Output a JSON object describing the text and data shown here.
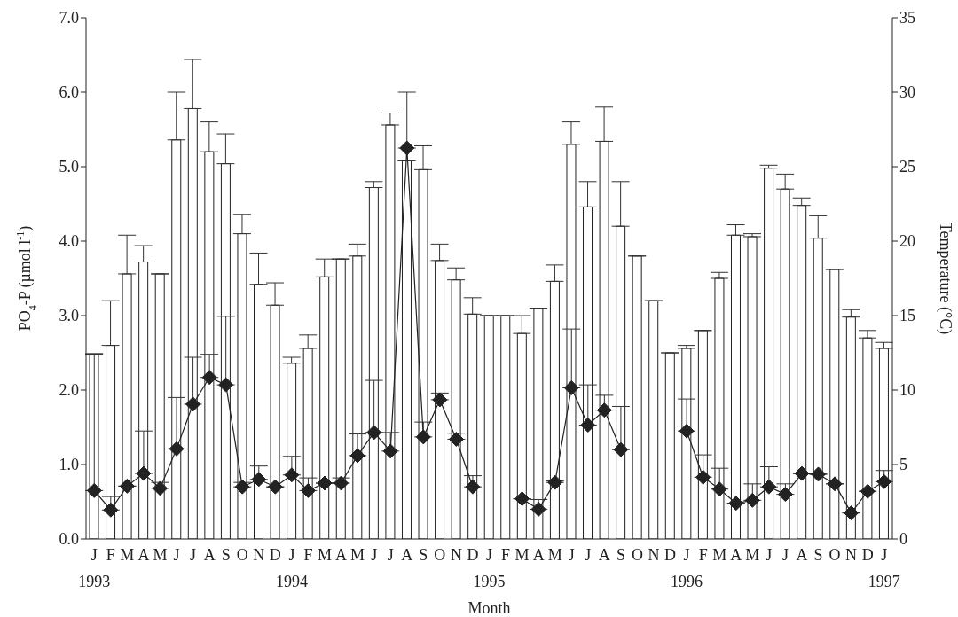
{
  "chart_data": {
    "type": "bar",
    "xlabel": "Month",
    "ylabel": "PO$_{4}$-P (µmol l$^{-1}$)",
    "y2label": "Temperature (°C)",
    "categories": [
      "J\n1993",
      "F",
      "M",
      "A",
      "M",
      "J",
      "J",
      "A",
      "S",
      "O",
      "N",
      "D",
      "J\n1994",
      "F",
      "M",
      "A",
      "M",
      "J",
      "J",
      "A",
      "S",
      "O",
      "N",
      "D",
      "J\n1995",
      "F",
      "M",
      "A",
      "M",
      "J",
      "J",
      "A",
      "S",
      "O",
      "N",
      "D",
      "J\n1996",
      "F",
      "M",
      "A",
      "M",
      "J",
      "J",
      "A",
      "S",
      "O",
      "N",
      "D",
      "J\n1997"
    ],
    "series": [
      {
        "axis": "y2",
        "color": "#ffffff",
        "values": [
          12.4,
          13.0,
          17.8,
          18.6,
          17.8,
          26.8,
          28.9,
          26.0,
          25.2,
          20.5,
          17.1,
          15.7,
          11.8,
          12.8,
          17.6,
          18.8,
          19.0,
          23.6,
          27.8,
          25.4,
          24.8,
          18.7,
          17.4,
          15.1,
          15.0,
          15.0,
          13.8,
          15.5,
          17.3,
          26.5,
          22.3,
          26.7,
          21.0,
          19.0,
          16.0,
          12.5,
          12.8,
          14.0,
          17.5,
          20.4,
          20.3,
          24.9,
          23.5,
          22.4,
          20.2,
          18.1,
          14.9,
          13.5,
          12.8
        ],
        "errors": [
          null,
          [
            13.0,
            16.0
          ],
          [
            17.8,
            20.4
          ],
          [
            18.6,
            19.7
          ],
          null,
          [
            26.8,
            30.0
          ],
          [
            28.9,
            32.2
          ],
          [
            26.0,
            28.0
          ],
          [
            25.2,
            27.2
          ],
          [
            20.5,
            21.8
          ],
          [
            17.1,
            19.2
          ],
          [
            15.7,
            17.2
          ],
          [
            11.8,
            12.2
          ],
          [
            12.8,
            13.7
          ],
          [
            17.6,
            18.8
          ],
          null,
          [
            19.0,
            19.8
          ],
          [
            23.6,
            24.0
          ],
          [
            27.8,
            28.6
          ],
          null,
          [
            24.8,
            26.4
          ],
          [
            18.7,
            19.8
          ],
          [
            17.4,
            18.2
          ],
          [
            15.1,
            16.2
          ],
          null,
          null,
          [
            13.8,
            15.0
          ],
          null,
          [
            17.3,
            18.4
          ],
          [
            26.5,
            28.0
          ],
          [
            22.3,
            24.0
          ],
          [
            26.7,
            29.0
          ],
          [
            21.0,
            24.0
          ],
          null,
          null,
          null,
          [
            12.8,
            13.0
          ],
          null,
          [
            17.5,
            17.9
          ],
          [
            20.4,
            21.1
          ],
          [
            20.3,
            20.5
          ],
          [
            24.9,
            25.1
          ],
          [
            23.5,
            24.5
          ],
          [
            22.4,
            22.9
          ],
          [
            20.2,
            21.7
          ],
          null,
          [
            14.9,
            15.4
          ],
          [
            13.5,
            14.0
          ],
          [
            12.8,
            13.2
          ]
        ]
      },
      {
        "type": "line",
        "axis": "y",
        "color": "#222222",
        "marker": "diamond",
        "line_style": "solid",
        "values": [
          0.65,
          0.39,
          0.71,
          0.88,
          0.68,
          1.21,
          1.81,
          2.17,
          2.07,
          0.7,
          0.8,
          0.7,
          0.86,
          0.65,
          0.75,
          0.75,
          1.12,
          1.43,
          1.18,
          5.25,
          1.37,
          1.87,
          1.34,
          0.7,
          null,
          null,
          0.54,
          0.4,
          0.76,
          2.03,
          1.53,
          1.73,
          1.2,
          null,
          null,
          null,
          1.45,
          0.83,
          0.67,
          0.48,
          0.52,
          0.7,
          0.6,
          0.88,
          0.87,
          0.74,
          0.35,
          0.64,
          0.77
        ],
        "errors": [
          [
            0.65,
            2.49
          ],
          [
            0.39,
            0.57
          ],
          null,
          [
            0.88,
            1.45
          ],
          [
            0.68,
            0.76
          ],
          [
            1.21,
            1.9
          ],
          [
            1.81,
            2.44
          ],
          [
            2.17,
            2.48
          ],
          [
            2.07,
            2.99
          ],
          [
            0.7,
            0.76
          ],
          [
            0.8,
            0.98
          ],
          null,
          [
            0.86,
            1.11
          ],
          [
            0.65,
            0.82
          ],
          null,
          [
            0.75,
            0.82
          ],
          [
            1.12,
            1.41
          ],
          [
            1.43,
            2.13
          ],
          [
            1.18,
            1.43
          ],
          [
            5.25,
            6.0
          ],
          [
            1.37,
            1.57
          ],
          [
            1.87,
            1.96
          ],
          [
            1.34,
            1.42
          ],
          [
            0.7,
            0.85
          ],
          null,
          null,
          null,
          [
            0.4,
            0.53
          ],
          [
            0.76,
            0.78
          ],
          [
            2.03,
            2.82
          ],
          [
            1.53,
            2.07
          ],
          [
            1.73,
            1.93
          ],
          [
            1.2,
            1.78
          ],
          null,
          null,
          null,
          [
            1.45,
            1.88
          ],
          [
            0.83,
            1.13
          ],
          [
            0.67,
            0.95
          ],
          null,
          [
            0.52,
            0.74
          ],
          [
            0.7,
            0.97
          ],
          [
            0.6,
            0.74
          ],
          null,
          null,
          null,
          null,
          null,
          [
            0.77,
            0.92
          ]
        ]
      }
    ],
    "ylim": [
      0,
      7
    ],
    "yticks": [
      {
        "value": 0,
        "label": "0.0"
      },
      {
        "value": 1,
        "label": "1.0"
      },
      {
        "value": 2,
        "label": "2.0"
      },
      {
        "value": 3,
        "label": "3.0"
      },
      {
        "value": 4,
        "label": "4.0"
      },
      {
        "value": 5,
        "label": "5.0"
      },
      {
        "value": 6,
        "label": "6.0"
      },
      {
        "value": 7,
        "label": "7.0"
      }
    ],
    "y2lim": [
      0,
      35
    ],
    "y2ticks": [
      0,
      5,
      10,
      15,
      20,
      25,
      30,
      35
    ]
  }
}
